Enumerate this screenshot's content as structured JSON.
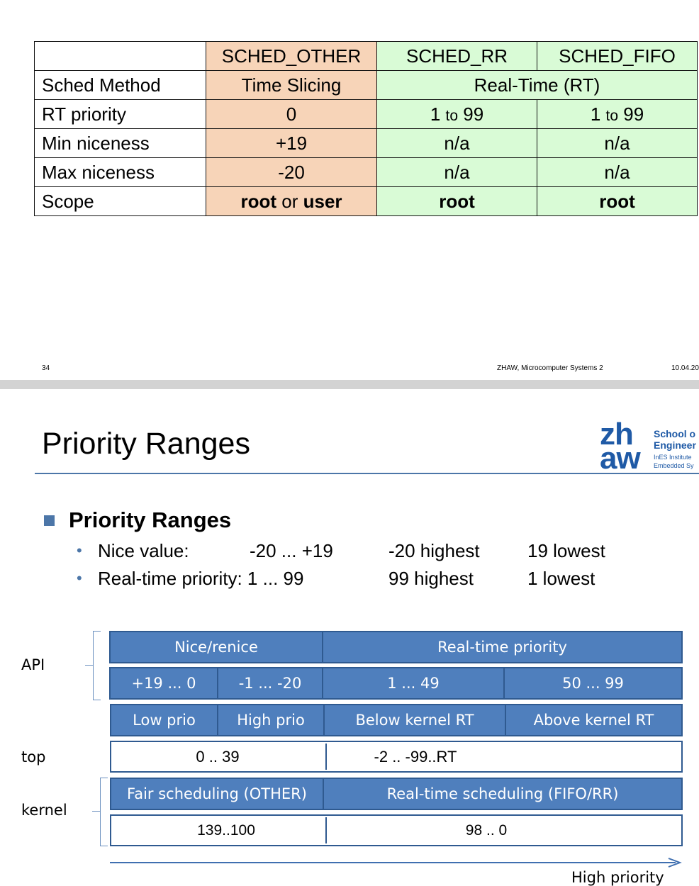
{
  "table": {
    "headers": [
      "",
      "SCHED_OTHER",
      "SCHED_RR",
      "SCHED_FIFO"
    ],
    "rows": {
      "sched_method": {
        "label": "Sched Method",
        "other": "Time Slicing",
        "rt": "Real-Time (RT)"
      },
      "rt_priority": {
        "label": "RT priority",
        "other": "0",
        "rr_a": "1",
        "rr_to": "to",
        "rr_b": "99",
        "fifo_a": "1",
        "fifo_to": "to",
        "fifo_b": "99"
      },
      "min_niceness": {
        "label": "Min niceness",
        "other": "+19",
        "rr": "n/a",
        "fifo": "n/a"
      },
      "max_niceness": {
        "label": "Max niceness",
        "other": "-20",
        "rr": "n/a",
        "fifo": "n/a"
      },
      "scope": {
        "label": "Scope",
        "other_a": "root",
        "other_or": "or",
        "other_b": "user",
        "rr": "root",
        "fifo": "root"
      }
    }
  },
  "footer": {
    "page": "34",
    "course": "ZHAW, Microcomputer Systems 2",
    "date": "10.04.20"
  },
  "slide": {
    "title": "Priority Ranges",
    "logo": {
      "zh": "zh",
      "aw": "aw",
      "line1": "School o",
      "line2": "Engineer",
      "line3": "InES Institute",
      "line4": "Embedded Sy"
    },
    "heading": "Priority Ranges",
    "bullets": [
      {
        "label": "Nice value:",
        "range": "-20 ... +19",
        "highest": "-20 highest",
        "lowest": "19 lowest"
      },
      {
        "label": "Real-time priority: 1 ... 99",
        "highest": "99 highest",
        "lowest": "1 lowest"
      }
    ]
  },
  "diagram": {
    "side_labels": {
      "api": "API",
      "top": "top",
      "kernel": "kernel"
    },
    "row1": {
      "nice": "Nice/renice",
      "rt": "Real-time priority"
    },
    "row2": {
      "a": "+19 ... 0",
      "b": "-1 ... -20",
      "c": "1 ... 49",
      "d": "50 ... 99"
    },
    "row3": {
      "a": "Low prio",
      "b": "High prio",
      "c": "Below kernel RT",
      "d": "Above kernel RT"
    },
    "row4": {
      "a": "0 .. 39",
      "b": "-2 .. -99..RT"
    },
    "row5": {
      "a": "Fair scheduling (OTHER)",
      "b": "Real-time scheduling (FIFO/RR)"
    },
    "row6": {
      "a": "139..100",
      "b": "98 .. 0"
    },
    "arrow_label": "High priority"
  },
  "colors": {
    "other": "#f7d4b8",
    "rt": "#d9fbd6",
    "blue": "#4f7fbd",
    "accent": "#4c76a8"
  }
}
